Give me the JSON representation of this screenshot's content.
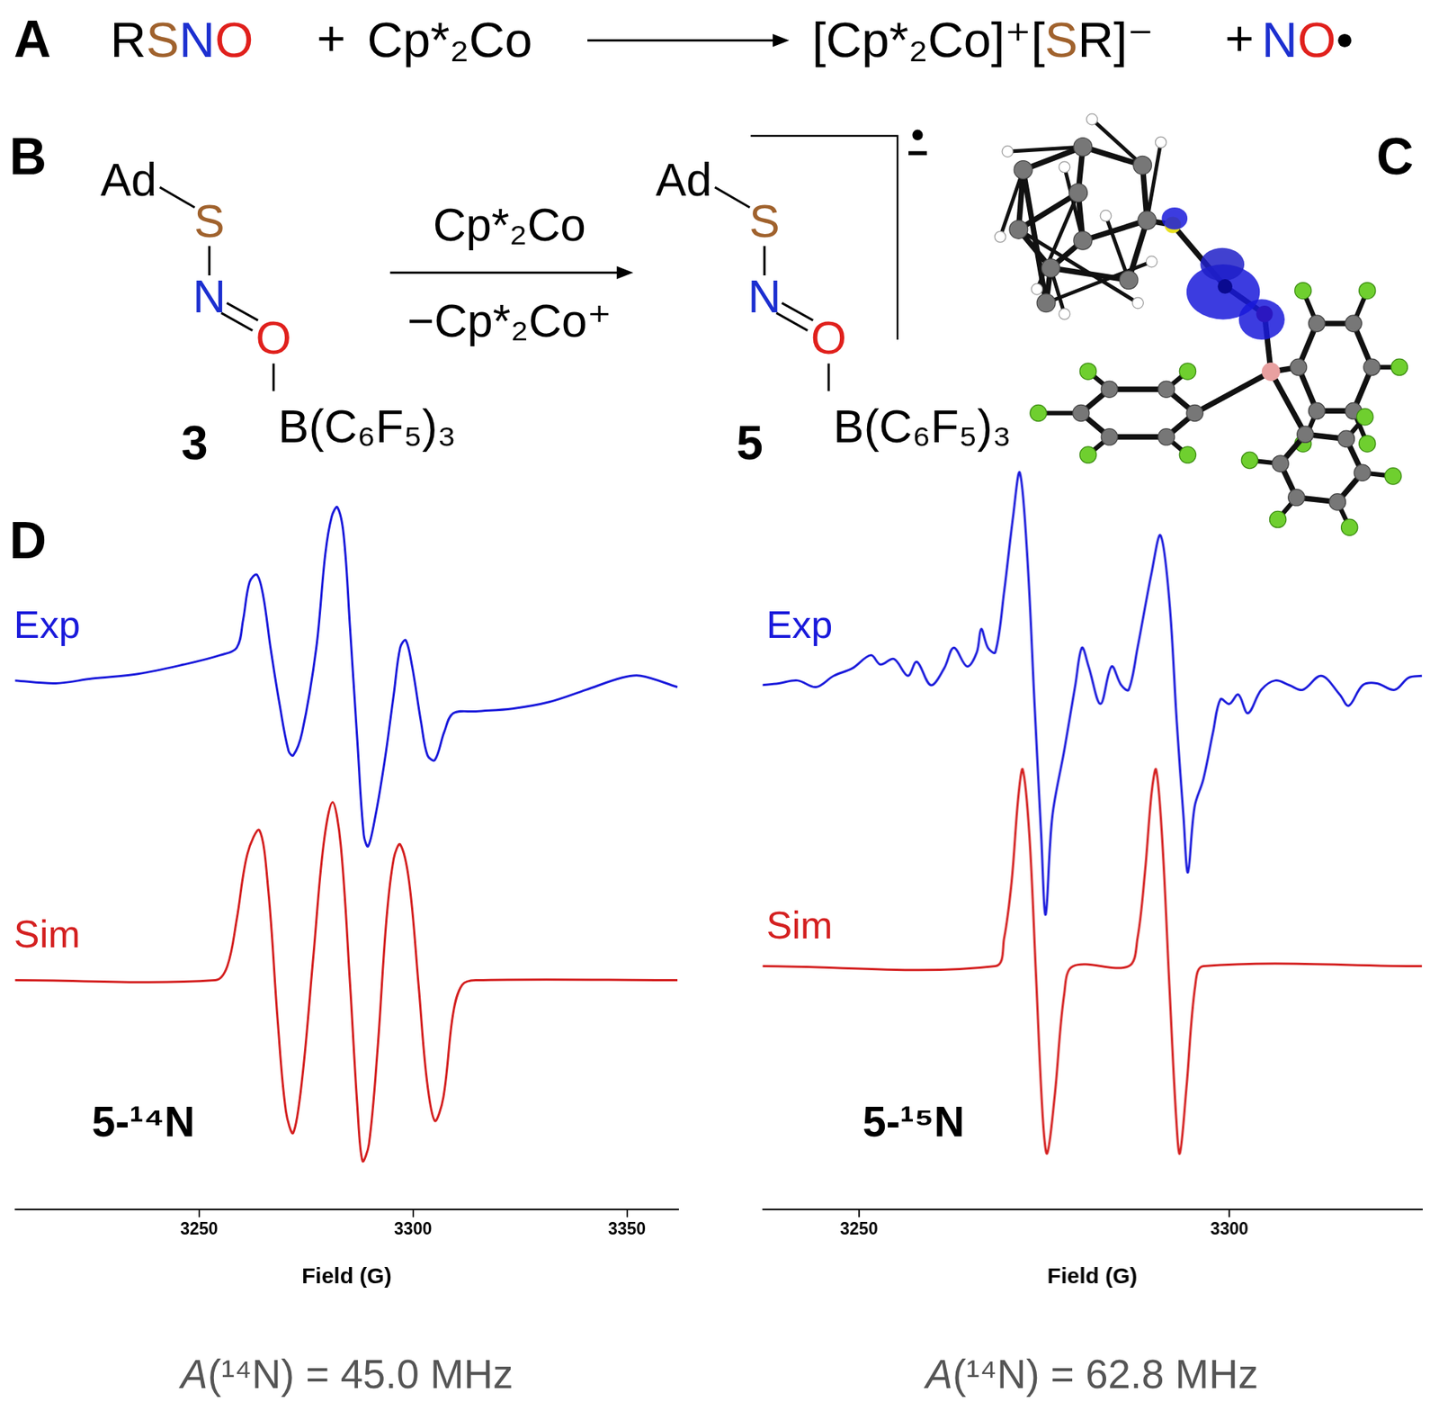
{
  "panel_labels": [
    "A",
    "B",
    "C",
    "D"
  ],
  "scheme_A": {
    "reactants": [
      "RSNO",
      "Cp*₂Co"
    ],
    "plus": "+",
    "products": [
      "[Cp*₂Co]⁺[SR]⁻",
      "NO•"
    ]
  },
  "scheme_B": {
    "reactant": {
      "number": "3",
      "R": "Ad",
      "atoms": [
        "S",
        "N",
        "O"
      ],
      "acceptor": "B(C₆F₅)₃"
    },
    "reagent": "Cp*₂Co",
    "byproduct": "−Cp*₂Co⁺",
    "product": {
      "number": "5",
      "R": "Ad",
      "atoms": [
        "S",
        "N",
        "O"
      ],
      "acceptor": "B(C₆F₅)₃",
      "charge": "•−"
    }
  },
  "chart_data": [
    {
      "type": "line",
      "title": "5-¹⁴N",
      "x_label": "Field (G)",
      "caption": "A(¹⁴N) = 45.0 MHz",
      "xlim": [
        3207,
        3362
      ],
      "xticks": [
        3250,
        3300,
        3350
      ],
      "ylim": [
        0,
        8
      ],
      "grid": false,
      "tick_labels": "x",
      "series": [
        {
          "name": "Exp",
          "color": "#1a1adb",
          "x": [
            3206.8,
            3216.5,
            3225.0,
            3235.7,
            3246.4,
            3254.9,
            3258.8,
            3260.3,
            3261.8,
            3263.5,
            3265.0,
            3266.7,
            3268.8,
            3270.9,
            3272.0,
            3274.1,
            3277.4,
            3279.5,
            3281.0,
            3282.3,
            3283.8,
            3285.3,
            3287.0,
            3288.5,
            3289.5,
            3291.2,
            3293.4,
            3295.5,
            3297.0,
            3298.3,
            3299.8,
            3301.9,
            3303.4,
            3305.1,
            3307.3,
            3309.4,
            3314.7,
            3323.3,
            3331.8,
            3340.4,
            3348.9,
            3353.2,
            3361.8
          ],
          "values": [
            5.65,
            5.62,
            5.67,
            5.72,
            5.82,
            5.92,
            6.0,
            6.3,
            6.7,
            6.78,
            6.55,
            6.0,
            5.4,
            4.9,
            4.85,
            5.1,
            6.0,
            7.0,
            7.4,
            7.5,
            7.2,
            6.2,
            5.0,
            4.0,
            3.88,
            4.2,
            4.8,
            5.5,
            6.0,
            6.08,
            5.8,
            5.2,
            4.85,
            4.8,
            5.1,
            5.3,
            5.32,
            5.35,
            5.42,
            5.55,
            5.68,
            5.7,
            5.58
          ]
        },
        {
          "name": "Sim",
          "color": "#d42020",
          "x": [
            3206.8,
            3253.8,
            3256.6,
            3258.8,
            3261.3,
            3264.1,
            3266.2,
            3268.4,
            3270.3,
            3272.0,
            3274.1,
            3276.7,
            3279.1,
            3281.2,
            3283.1,
            3285.3,
            3287.0,
            3288.2,
            3289.7,
            3291.7,
            3293.8,
            3295.5,
            3297.0,
            3299.1,
            3301.3,
            3303.2,
            3305.1,
            3307.1,
            3309.4,
            3311.5,
            3314.7,
            3361.8
          ],
          "values": [
            2.45,
            2.45,
            2.6,
            3.1,
            3.8,
            4.05,
            3.4,
            2.0,
            1.05,
            0.82,
            1.4,
            2.7,
            3.9,
            4.35,
            3.9,
            2.4,
            1.1,
            0.52,
            0.7,
            1.7,
            3.1,
            3.75,
            3.9,
            3.5,
            2.4,
            1.4,
            0.95,
            1.2,
            2.1,
            2.4,
            2.45,
            2.45
          ]
        }
      ]
    },
    {
      "type": "line",
      "title": "5-¹⁵N",
      "x_label": "Field (G)",
      "caption": "A(¹⁴N) = 62.8 MHz",
      "xlim": [
        3237,
        3326
      ],
      "xticks": [
        3250,
        3300
      ],
      "ylim": [
        0,
        8
      ],
      "grid": false,
      "tick_labels": "x",
      "series": [
        {
          "name": "Exp",
          "color": "#1a1adb",
          "x": [
            3236.7,
            3239.2,
            3241.7,
            3244.2,
            3246.6,
            3249.1,
            3251.6,
            3252.9,
            3254.7,
            3256.6,
            3257.8,
            3259.7,
            3261.5,
            3262.8,
            3264.6,
            3265.9,
            3266.5,
            3267.4,
            3268.4,
            3269.6,
            3270.8,
            3271.7,
            3272.7,
            3273.7,
            3274.6,
            3275.2,
            3276.1,
            3277.7,
            3279.2,
            3280.1,
            3281.0,
            3282.6,
            3284.1,
            3285.4,
            3286.4,
            3287.6,
            3289.5,
            3290.7,
            3291.9,
            3292.9,
            3293.8,
            3294.4,
            3295.3,
            3296.5,
            3297.8,
            3298.8,
            3300.0,
            3301.2,
            3302.5,
            3304.3,
            3306.2,
            3308.1,
            3309.9,
            3312.4,
            3314.9,
            3316.1,
            3318.0,
            3319.9,
            3322.3,
            3324.2,
            3326.0
          ],
          "values": [
            5.6,
            5.62,
            5.65,
            5.58,
            5.7,
            5.78,
            5.92,
            5.82,
            5.88,
            5.7,
            5.85,
            5.6,
            5.78,
            6.0,
            5.8,
            5.95,
            6.2,
            6.0,
            5.95,
            6.6,
            7.4,
            7.87,
            7.0,
            5.4,
            4.0,
            3.15,
            4.2,
            4.9,
            5.6,
            6.0,
            5.8,
            5.4,
            5.8,
            5.6,
            5.55,
            6.0,
            6.8,
            7.2,
            6.5,
            5.2,
            4.2,
            3.6,
            4.3,
            4.6,
            5.1,
            5.45,
            5.4,
            5.5,
            5.3,
            5.55,
            5.65,
            5.6,
            5.55,
            5.7,
            5.5,
            5.38,
            5.6,
            5.62,
            5.55,
            5.68,
            5.7
          ]
        },
        {
          "name": "Sim",
          "color": "#d42020",
          "x": [
            3236.7,
            3268.4,
            3269.6,
            3270.6,
            3271.5,
            3272.1,
            3273.0,
            3273.9,
            3274.8,
            3275.4,
            3276.4,
            3277.7,
            3278.9,
            3286.4,
            3287.6,
            3288.6,
            3289.5,
            3290.1,
            3290.9,
            3291.9,
            3292.8,
            3293.3,
            3294.2,
            3295.4,
            3296.5,
            3326.0
          ],
          "values": [
            2.6,
            2.6,
            2.9,
            3.5,
            4.4,
            4.7,
            4.0,
            2.5,
            1.0,
            0.6,
            1.2,
            2.3,
            2.6,
            2.6,
            2.9,
            3.6,
            4.45,
            4.7,
            4.0,
            2.4,
            1.0,
            0.6,
            1.3,
            2.4,
            2.6,
            2.6
          ]
        }
      ]
    }
  ]
}
